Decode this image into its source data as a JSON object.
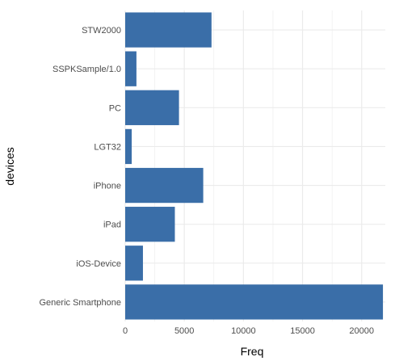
{
  "chart_data": {
    "type": "bar",
    "orientation": "horizontal",
    "categories": [
      "STW2000",
      "SSPKSample/1.0",
      "PC",
      "LGT32",
      "iPhone",
      "iPad",
      "iOS-Device",
      "Generic Smartphone"
    ],
    "values": [
      7300,
      950,
      4550,
      550,
      6600,
      4200,
      1500,
      21800
    ],
    "xlabel": "Freq",
    "ylabel": "devices",
    "xlim": [
      0,
      22000
    ],
    "xticks": [
      0,
      5000,
      10000,
      15000,
      20000
    ],
    "xtick_labels": [
      "0",
      "5000",
      "10000",
      "15000",
      "20000"
    ],
    "grid": true,
    "legend": "none",
    "bar_color": "#3a6ea8",
    "grid_color": "#ebebeb",
    "background": "#ffffff"
  }
}
